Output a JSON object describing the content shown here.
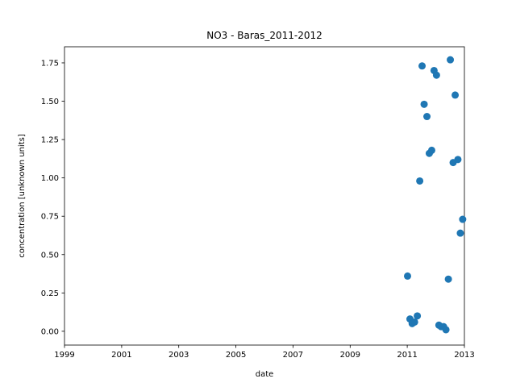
{
  "chart_data": {
    "type": "scatter",
    "title": "NO3 - Baras_2011-2012",
    "xlabel": "date",
    "ylabel": "concentration [unknown units]",
    "xlim": [
      "1999-01-01",
      "2013-01-01"
    ],
    "ylim": [
      -0.09,
      1.855
    ],
    "x_ticks": [
      "1999",
      "2001",
      "2003",
      "2005",
      "2007",
      "2009",
      "2011",
      "2013"
    ],
    "y_ticks": [
      "0.00",
      "0.25",
      "0.50",
      "0.75",
      "1.00",
      "1.25",
      "1.50",
      "1.75"
    ],
    "grid": false,
    "legend": "none",
    "marker_color": "#1f77b4",
    "series": [
      {
        "x": [
          "2011-01-05",
          "2011-02-05",
          "2011-03-05",
          "2011-04-05",
          "2011-05-10",
          "2011-06-10",
          "2011-07-10",
          "2011-08-05",
          "2011-09-10",
          "2011-10-10",
          "2011-11-10",
          "2011-12-10",
          "2012-01-10",
          "2012-02-10",
          "2012-03-10",
          "2012-04-10",
          "2012-05-10",
          "2012-06-10",
          "2012-07-05",
          "2012-08-10",
          "2012-09-05",
          "2012-10-10",
          "2012-11-10",
          "2012-12-10"
        ],
        "y": [
          0.36,
          0.08,
          0.05,
          0.06,
          0.1,
          0.98,
          1.73,
          1.48,
          1.4,
          1.16,
          1.18,
          1.7,
          1.67,
          0.04,
          0.03,
          0.03,
          0.01,
          0.34,
          1.77,
          1.1,
          1.54,
          1.12,
          0.64,
          0.73
        ]
      }
    ]
  }
}
